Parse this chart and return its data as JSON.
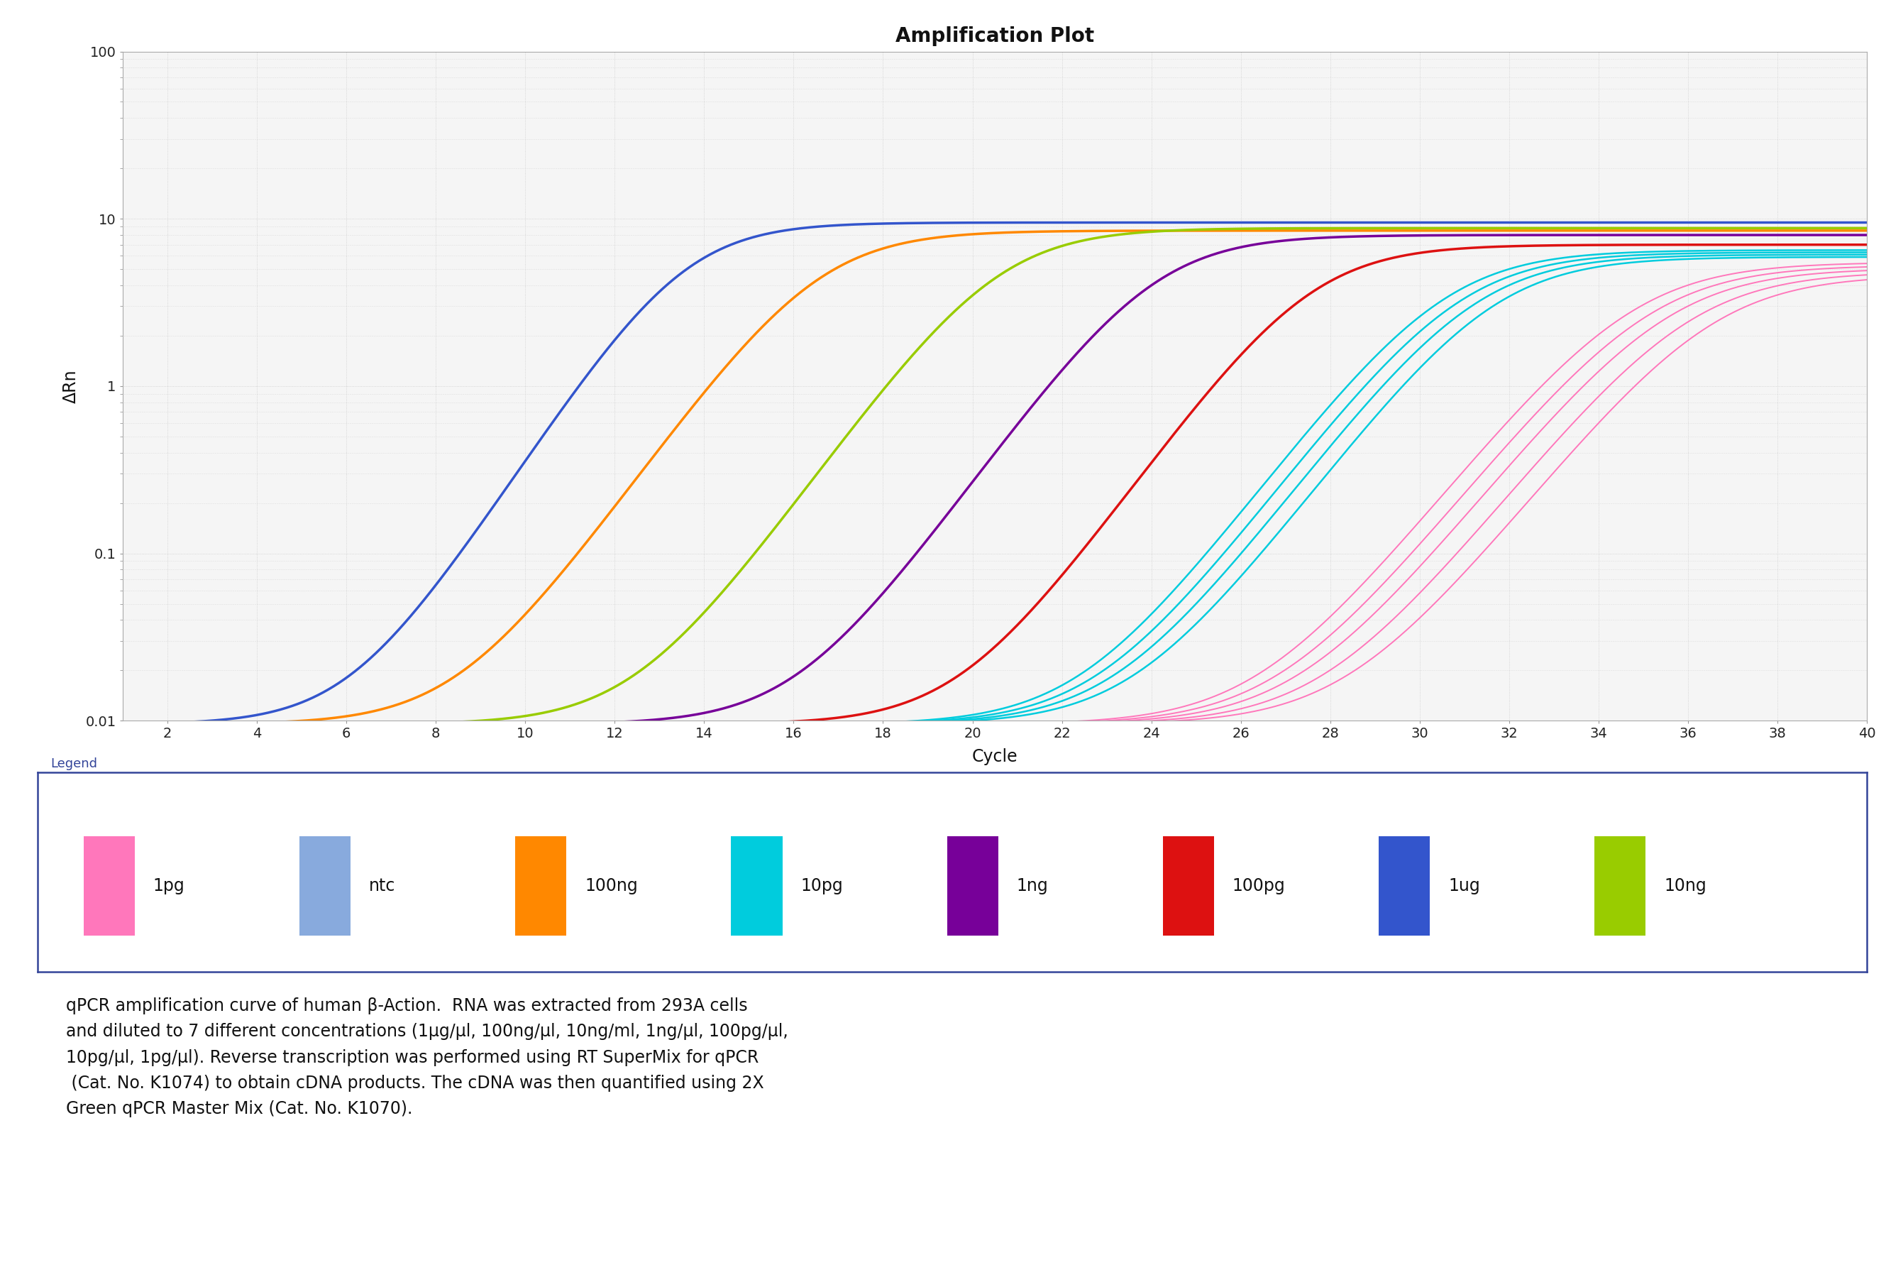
{
  "title": "Amplification Plot",
  "xlabel": "Cycle",
  "ylabel": "ΔRn",
  "xlim": [
    1,
    40
  ],
  "ylim_log": [
    0.01,
    100
  ],
  "xticks": [
    2,
    4,
    6,
    8,
    10,
    12,
    14,
    16,
    18,
    20,
    22,
    24,
    26,
    28,
    30,
    32,
    34,
    36,
    38,
    40
  ],
  "ytick_vals": [
    0.01,
    0.1,
    1,
    10,
    100
  ],
  "ytick_labels": [
    "0.01",
    "0.1",
    "1",
    "10",
    "100"
  ],
  "background_color": "#ffffff",
  "plot_bg_color": "#f5f5f5",
  "grid_color": "#cccccc",
  "series": [
    {
      "label": "1ug",
      "color": "#3355cc",
      "ct": 13.5,
      "plateau": 9.5,
      "steepness": 1.1,
      "n_lines": 1,
      "lw": 2.5,
      "ct_offsets": [
        0.0
      ],
      "plat_factors": [
        1.0
      ]
    },
    {
      "label": "100ng",
      "color": "#ff8800",
      "ct": 16.5,
      "plateau": 8.5,
      "steepness": 1.0,
      "n_lines": 1,
      "lw": 2.5,
      "ct_offsets": [
        0.0
      ],
      "plat_factors": [
        1.0
      ]
    },
    {
      "label": "10ng",
      "color": "#99cc00",
      "ct": 20.5,
      "plateau": 8.8,
      "steepness": 1.0,
      "n_lines": 1,
      "lw": 2.5,
      "ct_offsets": [
        0.0
      ],
      "plat_factors": [
        1.0
      ]
    },
    {
      "label": "1ng",
      "color": "#770099",
      "ct": 24.0,
      "plateau": 8.0,
      "steepness": 1.0,
      "n_lines": 1,
      "lw": 2.5,
      "ct_offsets": [
        0.0
      ],
      "plat_factors": [
        1.0
      ]
    },
    {
      "label": "100pg",
      "color": "#dd1111",
      "ct": 27.5,
      "plateau": 7.0,
      "steepness": 1.0,
      "n_lines": 1,
      "lw": 2.5,
      "ct_offsets": [
        0.0
      ],
      "plat_factors": [
        1.0
      ]
    },
    {
      "label": "10pg",
      "color": "#00ccdd",
      "ct": 31.0,
      "plateau": 6.5,
      "steepness": 0.95,
      "n_lines": 4,
      "lw": 1.8,
      "ct_offsets": [
        -0.5,
        -0.15,
        0.2,
        0.6
      ],
      "plat_factors": [
        1.0,
        0.97,
        0.94,
        0.91
      ]
    },
    {
      "label": "1pg",
      "color": "#ff77bb",
      "ct": 35.5,
      "plateau": 5.5,
      "steepness": 0.9,
      "n_lines": 5,
      "lw": 1.4,
      "ct_offsets": [
        -0.8,
        -0.4,
        0.0,
        0.5,
        1.0
      ],
      "plat_factors": [
        1.0,
        0.96,
        0.92,
        0.88,
        0.84
      ]
    },
    {
      "label": "ntc",
      "color": "#88aadd",
      "ct": 999,
      "plateau": 0,
      "steepness": 1.0,
      "n_lines": 0,
      "lw": 1.0,
      "ct_offsets": [
        0.0
      ],
      "plat_factors": [
        1.0
      ]
    }
  ],
  "legend_items": [
    {
      "label": "1pg",
      "color": "#ff77bb"
    },
    {
      "label": "ntc",
      "color": "#88aadd"
    },
    {
      "label": "100ng",
      "color": "#ff8800"
    },
    {
      "label": "10pg",
      "color": "#00ccdd"
    },
    {
      "label": "1ng",
      "color": "#770099"
    },
    {
      "label": "100pg",
      "color": "#dd1111"
    },
    {
      "label": "1ug",
      "color": "#3355cc"
    },
    {
      "label": "10ng",
      "color": "#99cc00"
    }
  ],
  "caption_line1": "qPCR amplification curve of human β-Action.  RNA was extracted from 293A cells",
  "caption_line2": "and diluted to 7 different concentrations (1μg/μl, 100ng/μl, 10ng/ml, 1ng/μl, 100pg/μl,",
  "caption_line3": "10pg/μl, 1pg/μl). Reverse transcription was performed using RT SuperMix for qPCR",
  "caption_line4": " (Cat. No. K1074) to obtain cDNA products. The cDNA was then quantified using 2X",
  "caption_line5": "Green qPCR Master Mix (Cat. No. K1070)."
}
